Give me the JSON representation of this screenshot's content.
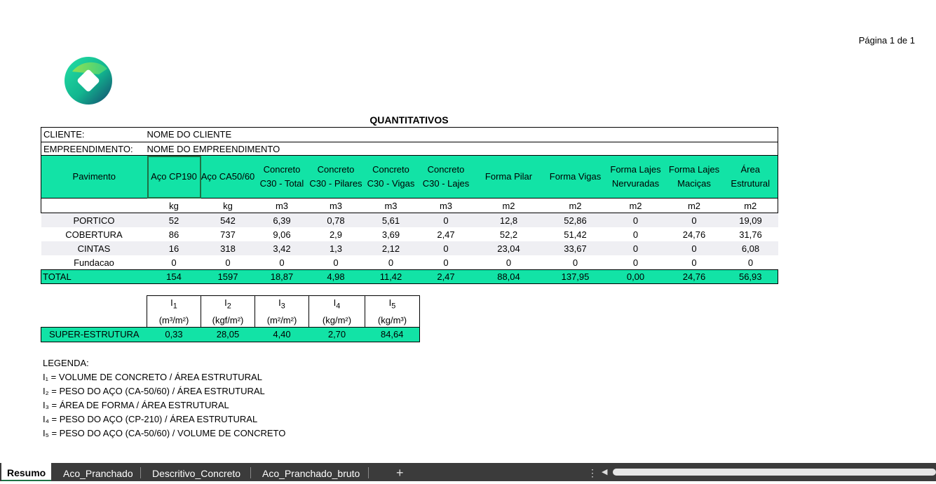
{
  "page_label": "Página 1 de 1",
  "title": "QUANTITATIVOS",
  "info": {
    "client_label": "CLIENTE:",
    "client_value": "NOME DO CLIENTE",
    "project_label": "EMPREENDIMENTO:",
    "project_value": "NOME DO EMPREENDIMENTO"
  },
  "main": {
    "headers": [
      "Pavimento",
      "Aço CP190",
      "Aço CA50/60",
      "Concreto C30 - Total",
      "Concreto C30 - Pilares",
      "Concreto C30 - Vigas",
      "Concreto C30 - Lajes",
      "Forma   Pilar",
      "Forma Vigas",
      "Forma Lajes Nervuradas",
      "Forma Lajes Maciças",
      "Área Estrutural"
    ],
    "units": [
      "",
      "kg",
      "kg",
      "m3",
      "m3",
      "m3",
      "m3",
      "m2",
      "m2",
      "m2",
      "m2",
      "m2"
    ],
    "rows": [
      [
        "PORTICO",
        "52",
        "542",
        "6,39",
        "0,78",
        "5,61",
        "0",
        "12,8",
        "52,86",
        "0",
        "0",
        "19,09"
      ],
      [
        "COBERTURA",
        "86",
        "737",
        "9,06",
        "2,9",
        "3,69",
        "2,47",
        "52,2",
        "51,42",
        "0",
        "24,76",
        "31,76"
      ],
      [
        "CINTAS",
        "16",
        "318",
        "3,42",
        "1,3",
        "2,12",
        "0",
        "23,04",
        "33,67",
        "0",
        "0",
        "6,08"
      ],
      [
        "Fundacao",
        "0",
        "0",
        "0",
        "0",
        "0",
        "0",
        "0",
        "0",
        "0",
        "0",
        "0"
      ]
    ],
    "total": [
      "TOTAL",
      "154",
      "1597",
      "18,87",
      "4,98",
      "11,42",
      "2,47",
      "88,04",
      "137,95",
      "0,00",
      "24,76",
      "56,93"
    ]
  },
  "indices": {
    "headers": [
      {
        "name": "I",
        "sub": "1",
        "unit": "(m³/m²)"
      },
      {
        "name": "I",
        "sub": "2",
        "unit": "(kgf/m²)"
      },
      {
        "name": "I",
        "sub": "3",
        "unit": "(m²/m²)"
      },
      {
        "name": "I",
        "sub": "4",
        "unit": "(kg/m²)"
      },
      {
        "name": "I",
        "sub": "5",
        "unit": "(kg/m³)"
      }
    ],
    "row_label": "SUPER-ESTRUTURA",
    "values": [
      "0,33",
      "28,05",
      "4,40",
      "2,70",
      "84,64"
    ]
  },
  "legend": {
    "title": "LEGENDA:",
    "items": [
      "I₁ = VOLUME DE CONCRETO / ÁREA ESTRUTURAL",
      "I₂ = PESO DO AÇO (CA-50/60) / ÁREA ESTRUTURAL",
      "I₃ = ÁREA DE FORMA / ÁREA ESTRUTURAL",
      "I₄ = PESO DO AÇO (CP-210) / ÁREA ESTRUTURAL",
      "I₅ = PESO DO AÇO (CA-50/60) / VOLUME DE CONCRETO"
    ]
  },
  "tabs": [
    "Resumo",
    "Aco_Pranchado",
    "Descritivo_Concreto",
    "Aco_Pranchado_bruto"
  ],
  "add_tab_icon": "+",
  "more_icon": "⋮",
  "scroll_left_icon": "◀",
  "colors": {
    "accent": "#12e3a6",
    "row_alt": "#efeff3",
    "tabbar": "#3b3b3b",
    "selection": "#1e7145"
  }
}
